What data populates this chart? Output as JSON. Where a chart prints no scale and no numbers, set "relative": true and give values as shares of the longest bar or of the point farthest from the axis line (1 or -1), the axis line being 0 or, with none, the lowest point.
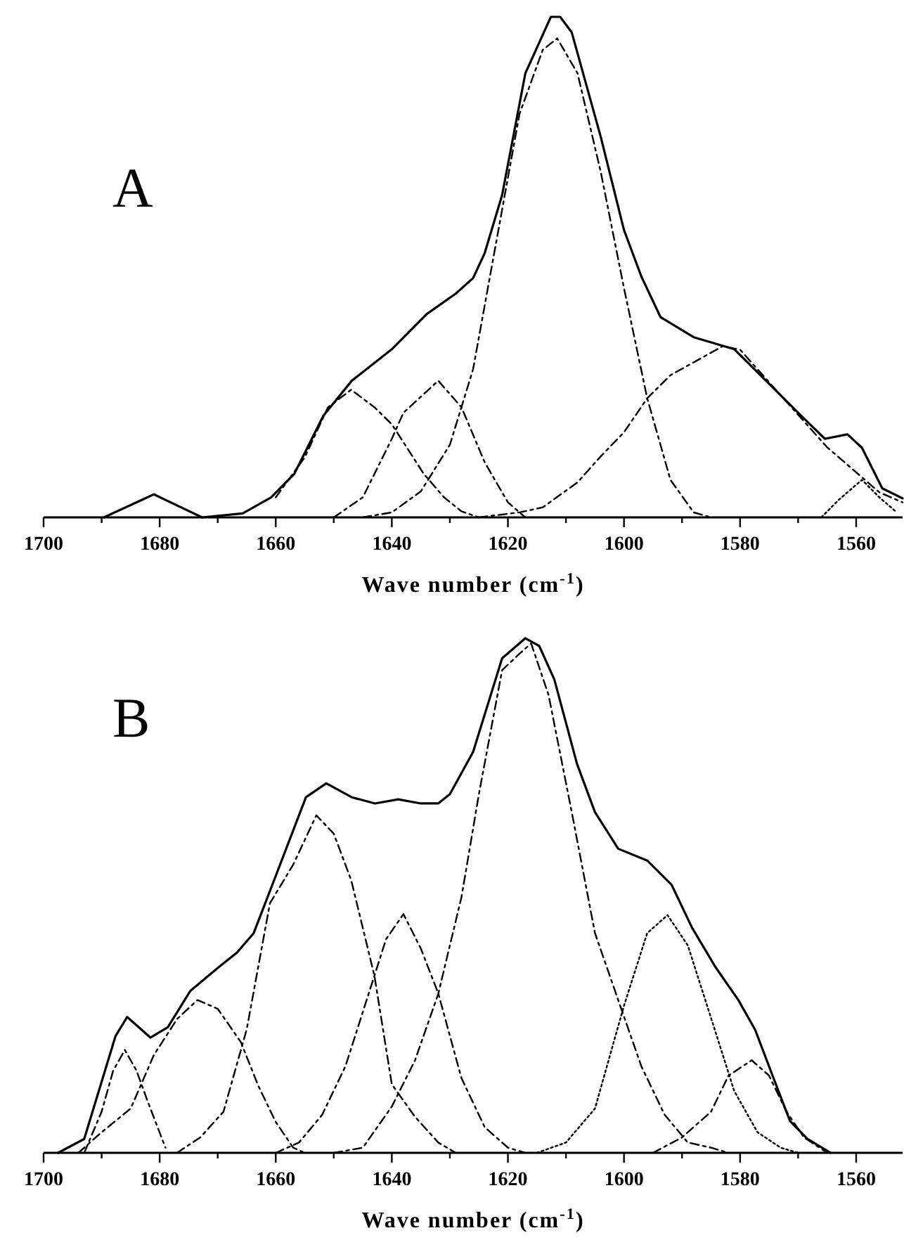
{
  "chart_data": [
    {
      "type": "line",
      "relative": true,
      "xlabel": "Wave number (cm$^{-1}$)",
      "annotations": [
        "A"
      ],
      "xlim": [
        1700,
        1552
      ],
      "xticks": [
        1700,
        {
          "value": 1690,
          "label": null
        },
        1680,
        {
          "value": 1670,
          "label": null
        },
        1660,
        {
          "value": 1650,
          "label": null
        },
        1640,
        {
          "value": 1630,
          "label": null
        },
        1620,
        {
          "value": 1610,
          "label": null
        },
        1600,
        {
          "value": 1590,
          "label": null
        },
        1580,
        {
          "value": 1570,
          "label": null
        },
        1560
      ],
      "series": [
        {
          "color": "#000000",
          "line_style": "solid",
          "x": [
            1689.6,
            1681,
            1672.7,
            1665.7,
            1660.8,
            1656.8,
            1651.8,
            1646.9,
            1640,
            1634,
            1629,
            1626,
            1624,
            1621,
            1617,
            1612.6,
            1611,
            1609,
            1604,
            1600,
            1597,
            1593.7,
            1588,
            1581,
            1575,
            1570,
            1565.4,
            1561.5,
            1559,
            1555.5,
            1552
          ],
          "values": [
            0,
            0.046,
            0,
            0.008,
            0.04,
            0.087,
            0.203,
            0.273,
            0.336,
            0.406,
            0.447,
            0.478,
            0.528,
            0.644,
            0.887,
            1,
            1,
            0.969,
            0.76,
            0.574,
            0.481,
            0.4,
            0.36,
            0.336,
            0.267,
            0.209,
            0.157,
            0.166,
            0.139,
            0.058,
            0.038
          ]
        },
        {
          "color": "#000000",
          "line_style": "dashed",
          "x": [
            1660,
            1655,
            1651,
            1647,
            1643,
            1640,
            1634.5,
            1631,
            1628,
            1625
          ],
          "values": [
            0.04,
            0.12,
            0.22,
            0.255,
            0.22,
            0.186,
            0.087,
            0.04,
            0.012,
            0
          ]
        },
        {
          "color": "#000000",
          "line_style": "dashed",
          "x": [
            1650,
            1645,
            1640,
            1638,
            1632,
            1628,
            1624,
            1620,
            1617
          ],
          "values": [
            0,
            0.04,
            0.157,
            0.209,
            0.273,
            0.22,
            0.11,
            0.03,
            0
          ]
        },
        {
          "color": "#000000",
          "line_style": "dashed",
          "x": [
            1645,
            1640,
            1635,
            1630,
            1626,
            1622,
            1618,
            1614,
            1611.5,
            1608,
            1604,
            1600,
            1596,
            1592,
            1588,
            1585
          ],
          "values": [
            0,
            0.01,
            0.052,
            0.145,
            0.296,
            0.551,
            0.806,
            0.934,
            0.957,
            0.887,
            0.69,
            0.458,
            0.238,
            0.075,
            0.01,
            0
          ]
        },
        {
          "color": "#000000",
          "line_style": "dashed",
          "x": [
            1625,
            1618,
            1614,
            1608,
            1604,
            1600,
            1596,
            1592,
            1583,
            1580,
            1575,
            1570,
            1565,
            1560,
            1556,
            1552
          ],
          "values": [
            0,
            0.01,
            0.02,
            0.07,
            0.122,
            0.17,
            0.238,
            0.284,
            0.342,
            0.335,
            0.27,
            0.205,
            0.14,
            0.09,
            0.05,
            0.03
          ]
        },
        {
          "color": "#000000",
          "line_style": "dotted",
          "x": [
            1566,
            1563,
            1559,
            1556,
            1553
          ],
          "values": [
            0,
            0.035,
            0.075,
            0.04,
            0.01
          ]
        }
      ]
    },
    {
      "type": "line",
      "relative": true,
      "xlabel": "Wave number (cm$^{-1}$)",
      "annotations": [
        "B"
      ],
      "xlim": [
        1700,
        1552
      ],
      "xticks": [
        1700,
        {
          "value": 1690,
          "label": null
        },
        1680,
        {
          "value": 1670,
          "label": null
        },
        1660,
        {
          "value": 1650,
          "label": null
        },
        1640,
        {
          "value": 1630,
          "label": null
        },
        1620,
        {
          "value": 1610,
          "label": null
        },
        1600,
        {
          "value": 1590,
          "label": null
        },
        1580,
        {
          "value": 1570,
          "label": null
        },
        1560
      ],
      "series": [
        {
          "color": "#000000",
          "line_style": "solid",
          "x": [
            1697.5,
            1693,
            1687.6,
            1685.6,
            1681.6,
            1678.6,
            1674.7,
            1669.7,
            1666.7,
            1663.8,
            1659.8,
            1654.8,
            1651.3,
            1646.9,
            1642.9,
            1638.9,
            1635,
            1632,
            1630,
            1626,
            1621,
            1617,
            1614.6,
            1612,
            1608.1,
            1605,
            1601,
            1596,
            1591.8,
            1588.3,
            1584.3,
            1580.3,
            1577.4,
            1574.4,
            1571.4,
            1568.4,
            1564.4
          ],
          "values": [
            0,
            0.027,
            0.227,
            0.264,
            0.224,
            0.244,
            0.315,
            0.362,
            0.389,
            0.427,
            0.544,
            0.691,
            0.718,
            0.691,
            0.679,
            0.687,
            0.679,
            0.679,
            0.697,
            0.779,
            0.961,
            1,
            0.985,
            0.92,
            0.756,
            0.662,
            0.591,
            0.568,
            0.521,
            0.438,
            0.362,
            0.297,
            0.239,
            0.15,
            0.062,
            0.027,
            0
          ]
        },
        {
          "color": "#000000",
          "line_style": "dashed",
          "x": [
            1693,
            1690,
            1688,
            1686,
            1684,
            1682,
            1679
          ],
          "values": [
            0,
            0.08,
            0.16,
            0.2,
            0.16,
            0.098,
            0.01
          ]
        },
        {
          "color": "#000000",
          "line_style": "dashed",
          "x": [
            1694,
            1690,
            1685,
            1681,
            1677,
            1673.5,
            1670,
            1666,
            1663,
            1660,
            1657,
            1655
          ],
          "values": [
            0,
            0.04,
            0.086,
            0.19,
            0.26,
            0.297,
            0.28,
            0.215,
            0.13,
            0.06,
            0.01,
            0
          ]
        },
        {
          "color": "#000000",
          "line_style": "dashed",
          "x": [
            1677,
            1673,
            1669,
            1665,
            1661,
            1657,
            1653,
            1650,
            1647,
            1643,
            1640,
            1636,
            1632,
            1629
          ],
          "values": [
            0,
            0.03,
            0.08,
            0.24,
            0.485,
            0.56,
            0.656,
            0.62,
            0.53,
            0.344,
            0.133,
            0.07,
            0.02,
            0
          ]
        },
        {
          "color": "#000000",
          "line_style": "dashed",
          "x": [
            1660,
            1656,
            1652,
            1648,
            1644,
            1641,
            1638,
            1635,
            1632,
            1628,
            1624,
            1620,
            1617
          ],
          "values": [
            0,
            0.02,
            0.074,
            0.168,
            0.309,
            0.415,
            0.464,
            0.397,
            0.31,
            0.145,
            0.05,
            0.01,
            0
          ]
        },
        {
          "color": "#000000",
          "line_style": "dashed",
          "x": [
            1650,
            1645,
            1640,
            1636,
            1632,
            1628,
            1625,
            1621,
            1618,
            1616,
            1613,
            1609,
            1605,
            1601,
            1597,
            1593,
            1589,
            1585,
            1582
          ],
          "values": [
            0,
            0.01,
            0.09,
            0.18,
            0.309,
            0.497,
            0.697,
            0.938,
            0.97,
            0.99,
            0.89,
            0.662,
            0.427,
            0.297,
            0.168,
            0.074,
            0.02,
            0.01,
            0
          ]
        },
        {
          "color": "#000000",
          "line_style": "dotted",
          "x": [
            1615,
            1610,
            1605,
            1600,
            1596,
            1592.5,
            1589,
            1585,
            1581,
            1577,
            1573,
            1570
          ],
          "values": [
            0,
            0.02,
            0.086,
            0.286,
            0.427,
            0.462,
            0.403,
            0.262,
            0.12,
            0.04,
            0.01,
            0
          ]
        },
        {
          "color": "#000000",
          "line_style": "dashed",
          "x": [
            1595,
            1590,
            1585,
            1582,
            1578,
            1575,
            1572,
            1569,
            1565
          ],
          "values": [
            0,
            0.03,
            0.08,
            0.15,
            0.18,
            0.15,
            0.08,
            0.03,
            0
          ]
        }
      ]
    }
  ]
}
